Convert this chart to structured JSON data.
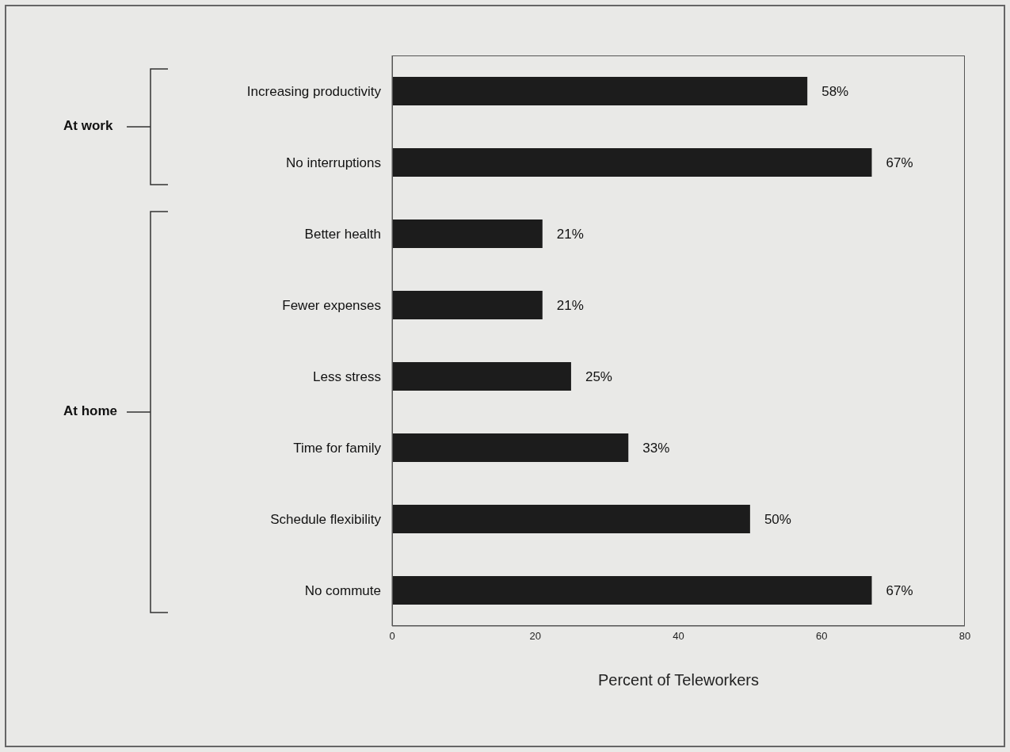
{
  "chart_data": {
    "type": "bar",
    "orientation": "horizontal",
    "xlabel": "Percent of Teleworkers",
    "categories": [
      "Increasing productivity",
      "No interruptions",
      "Better health",
      "Fewer expenses",
      "Less stress",
      "Time for family",
      "Schedule flexibility",
      "No commute"
    ],
    "values": [
      58,
      67,
      21,
      21,
      25,
      33,
      50,
      67
    ],
    "value_labels": [
      "58%",
      "67%",
      "21%",
      "21%",
      "25%",
      "33%",
      "50%",
      "67%"
    ],
    "color": "#1c1c1c",
    "xlim": [
      0,
      80
    ],
    "xticks": [
      0,
      20,
      40,
      60,
      80
    ],
    "annotations": [
      "At work",
      "At home"
    ],
    "grid": false,
    "legend": false
  }
}
